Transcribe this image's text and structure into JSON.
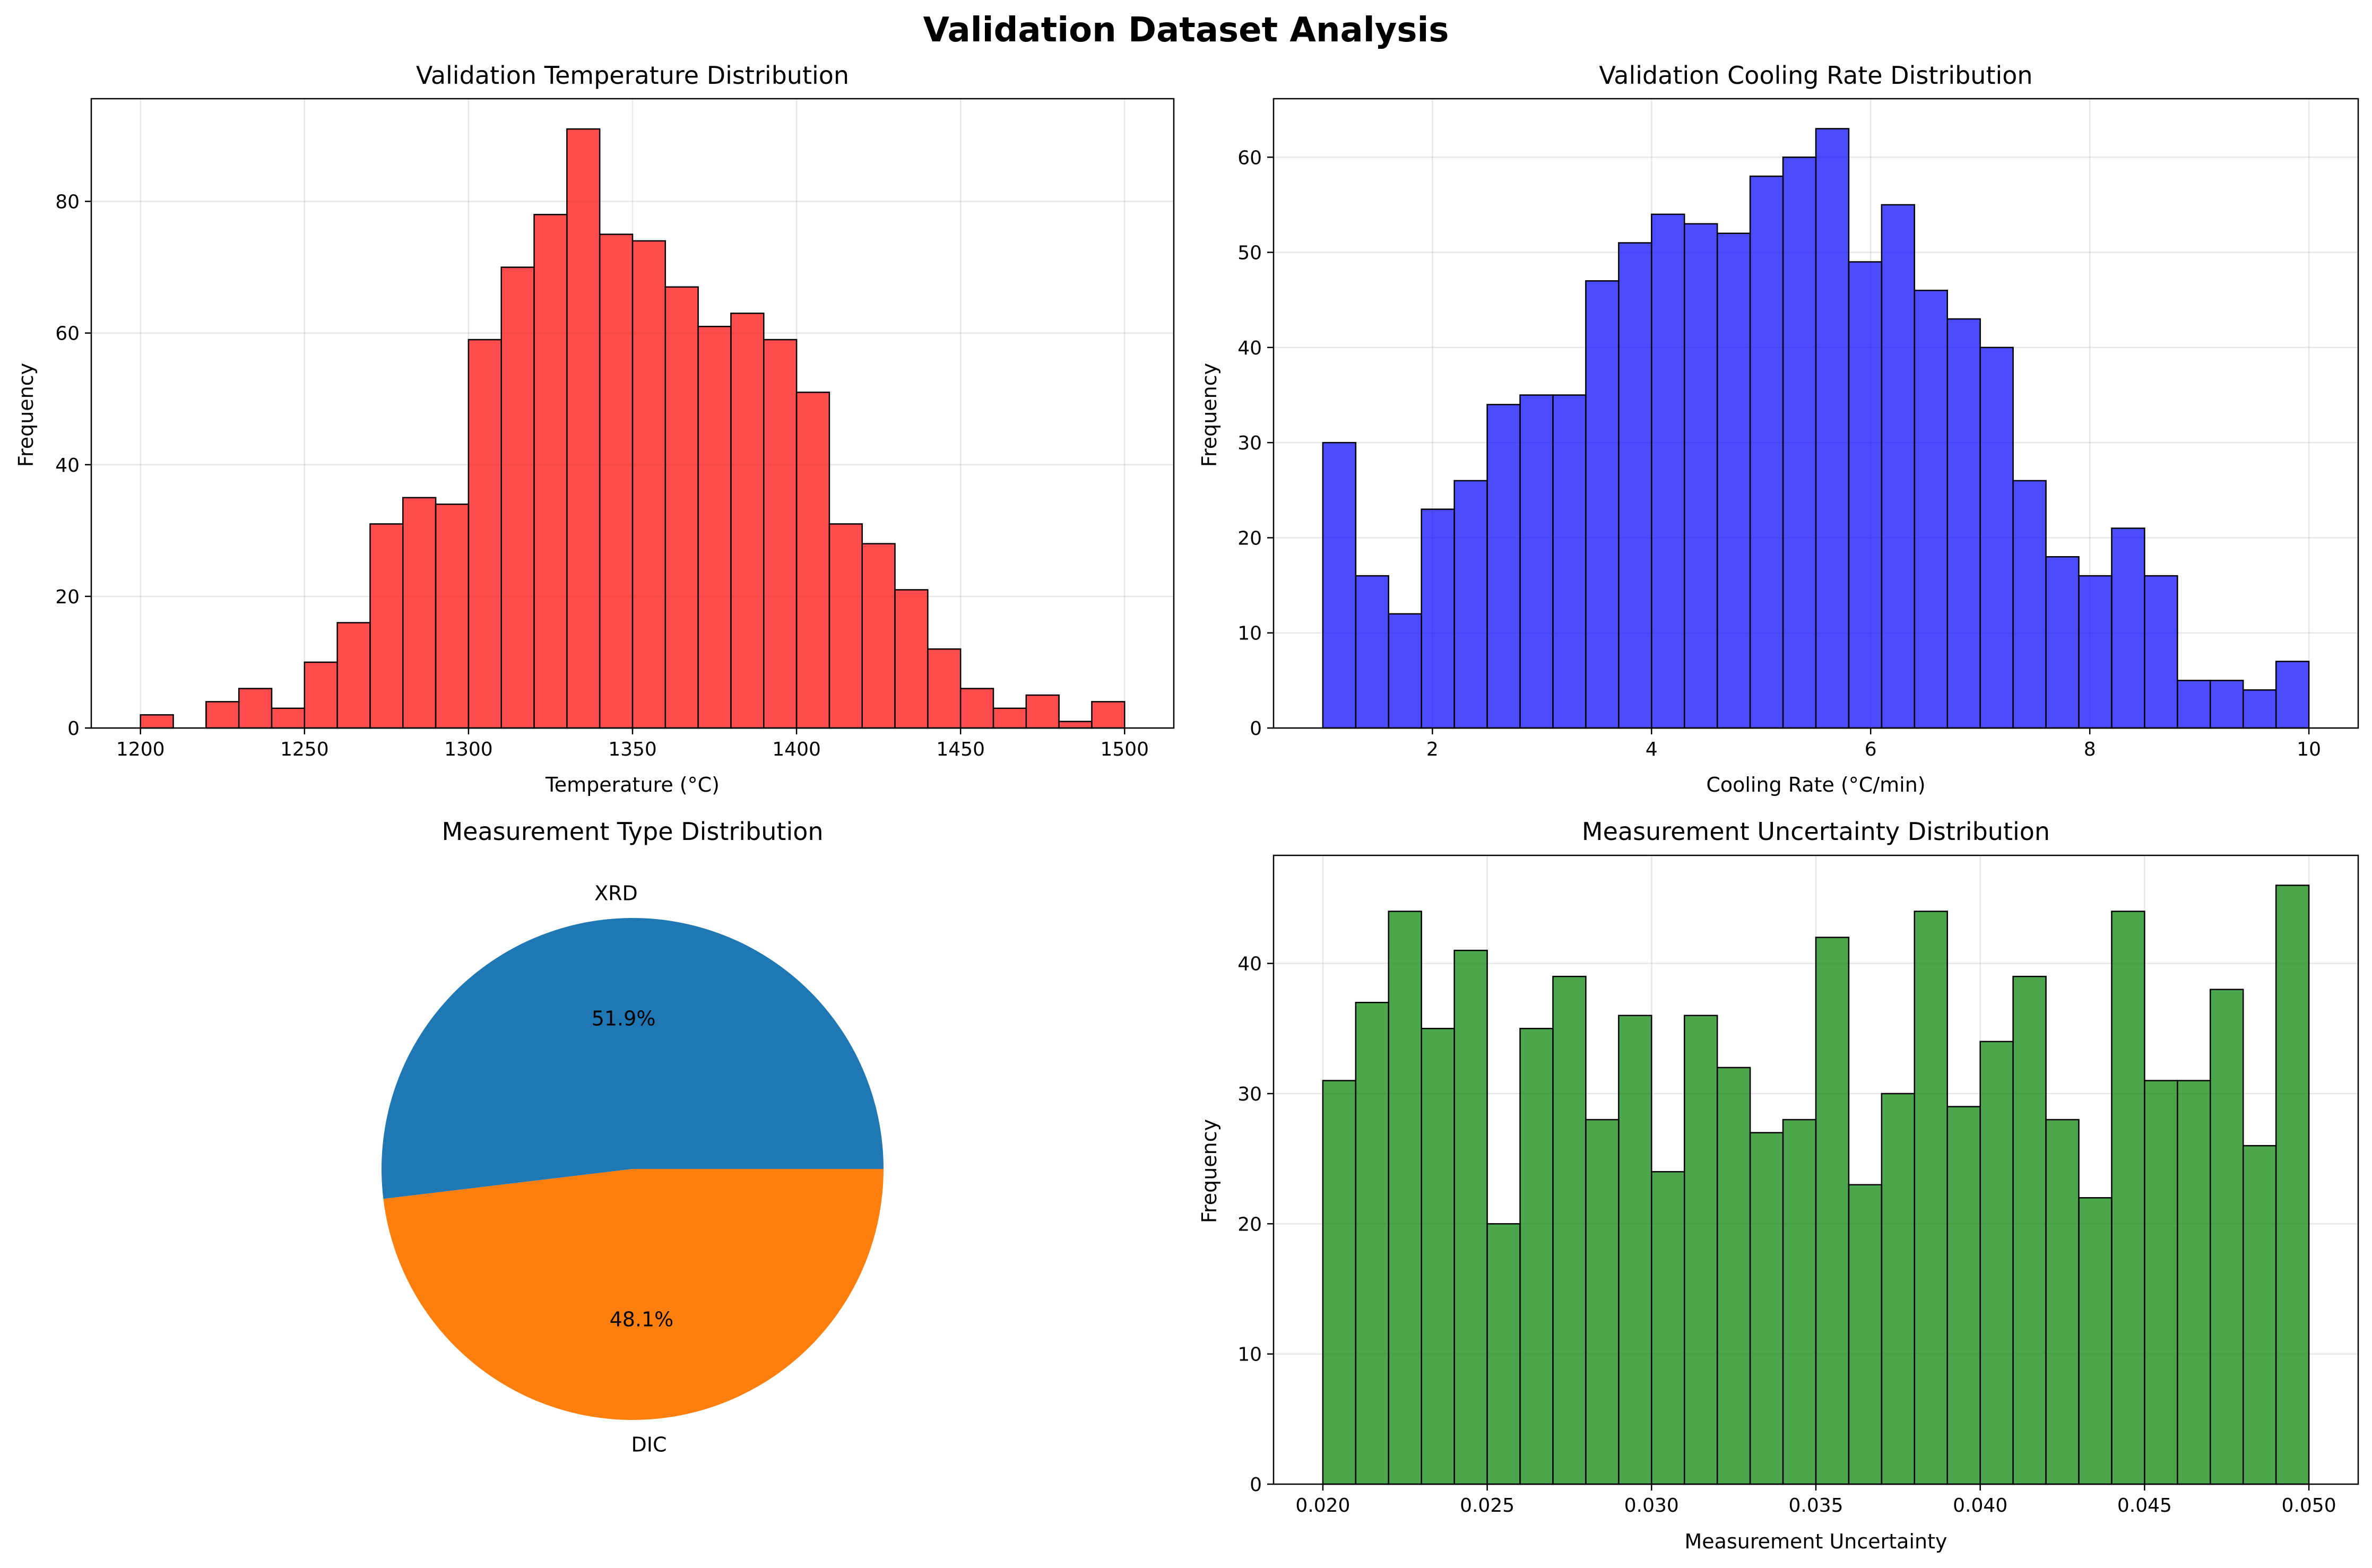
{
  "suptitle": "Validation Dataset Analysis",
  "chart_data": [
    {
      "type": "bar",
      "id": "temp",
      "title": "Validation Temperature Distribution",
      "xlabel": "Temperature (°C)",
      "ylabel": "Frequency",
      "color": "#ff0000",
      "bin_start": 1200,
      "bin_end": 1500,
      "counts": [
        2,
        0,
        4,
        6,
        3,
        10,
        16,
        31,
        35,
        34,
        59,
        70,
        78,
        91,
        75,
        74,
        67,
        61,
        63,
        59,
        51,
        31,
        28,
        21,
        12,
        6,
        3,
        5,
        1,
        4
      ],
      "xlim": [
        1185,
        1515
      ],
      "ylim": [
        0,
        95.6
      ],
      "xticks": [
        1200,
        1250,
        1300,
        1350,
        1400,
        1450,
        1500
      ],
      "yticks": [
        0,
        20,
        40,
        60,
        80
      ],
      "grid": true
    },
    {
      "type": "bar",
      "id": "cool",
      "title": "Validation Cooling Rate Distribution",
      "xlabel": "Cooling Rate (°C/min)",
      "ylabel": "Frequency",
      "color": "#0000ff",
      "bin_start": 1,
      "bin_end": 10,
      "counts": [
        30,
        16,
        12,
        23,
        26,
        34,
        35,
        35,
        47,
        51,
        54,
        53,
        52,
        58,
        60,
        63,
        49,
        55,
        46,
        43,
        40,
        26,
        18,
        16,
        21,
        16,
        5,
        5,
        4,
        7
      ],
      "xlim": [
        0.55,
        10.45
      ],
      "ylim": [
        0,
        66.15
      ],
      "xticks": [
        2,
        4,
        6,
        8,
        10
      ],
      "yticks": [
        0,
        10,
        20,
        30,
        40,
        50,
        60
      ],
      "grid": true
    },
    {
      "type": "pie",
      "id": "meas",
      "title": "Measurement Type Distribution",
      "labels": [
        "XRD",
        "DIC"
      ],
      "values": [
        51.9,
        48.1
      ],
      "pct_labels": [
        "51.9%",
        "48.1%"
      ],
      "colors": [
        "#1f77b4",
        "#ff7f0e"
      ]
    },
    {
      "type": "bar",
      "id": "unc",
      "title": "Measurement Uncertainty Distribution",
      "xlabel": "Measurement Uncertainty",
      "ylabel": "Frequency",
      "color": "#008000",
      "bin_start": 0.02,
      "bin_end": 0.05,
      "counts": [
        31,
        37,
        44,
        35,
        41,
        20,
        35,
        39,
        28,
        36,
        24,
        36,
        32,
        27,
        28,
        42,
        23,
        30,
        44,
        29,
        34,
        39,
        28,
        22,
        44,
        31,
        31,
        38,
        26,
        46
      ],
      "xlim": [
        0.0185,
        0.0515
      ],
      "ylim": [
        0,
        48.3
      ],
      "xticks": [
        0.02,
        0.025,
        0.03,
        0.035,
        0.04,
        0.045,
        0.05
      ],
      "xtick_labels": [
        "0.020",
        "0.025",
        "0.030",
        "0.035",
        "0.040",
        "0.045",
        "0.050"
      ],
      "yticks": [
        0,
        10,
        20,
        30,
        40
      ],
      "grid": true
    }
  ]
}
